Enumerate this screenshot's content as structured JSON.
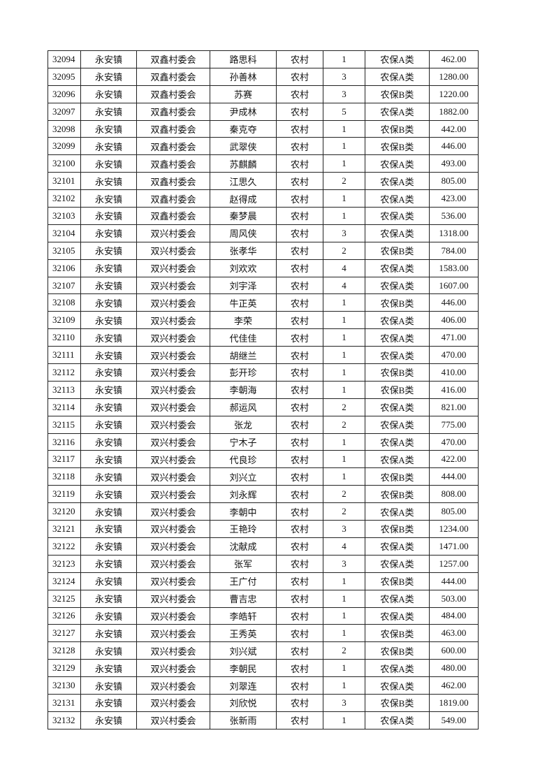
{
  "table": {
    "rows": [
      [
        "32094",
        "永安镇",
        "双鑫村委会",
        "路思科",
        "农村",
        "1",
        "农保A类",
        "462.00"
      ],
      [
        "32095",
        "永安镇",
        "双鑫村委会",
        "孙善林",
        "农村",
        "3",
        "农保A类",
        "1280.00"
      ],
      [
        "32096",
        "永安镇",
        "双鑫村委会",
        "苏赛",
        "农村",
        "3",
        "农保B类",
        "1220.00"
      ],
      [
        "32097",
        "永安镇",
        "双鑫村委会",
        "尹成林",
        "农村",
        "5",
        "农保A类",
        "1882.00"
      ],
      [
        "32098",
        "永安镇",
        "双鑫村委会",
        "秦克夺",
        "农村",
        "1",
        "农保B类",
        "442.00"
      ],
      [
        "32099",
        "永安镇",
        "双鑫村委会",
        "武翠侠",
        "农村",
        "1",
        "农保B类",
        "446.00"
      ],
      [
        "32100",
        "永安镇",
        "双鑫村委会",
        "苏麒麟",
        "农村",
        "1",
        "农保A类",
        "493.00"
      ],
      [
        "32101",
        "永安镇",
        "双鑫村委会",
        "江思久",
        "农村",
        "2",
        "农保A类",
        "805.00"
      ],
      [
        "32102",
        "永安镇",
        "双鑫村委会",
        "赵得成",
        "农村",
        "1",
        "农保A类",
        "423.00"
      ],
      [
        "32103",
        "永安镇",
        "双鑫村委会",
        "秦梦晨",
        "农村",
        "1",
        "农保A类",
        "536.00"
      ],
      [
        "32104",
        "永安镇",
        "双兴村委会",
        "周风侠",
        "农村",
        "3",
        "农保A类",
        "1318.00"
      ],
      [
        "32105",
        "永安镇",
        "双兴村委会",
        "张孝华",
        "农村",
        "2",
        "农保B类",
        "784.00"
      ],
      [
        "32106",
        "永安镇",
        "双兴村委会",
        "刘欢欢",
        "农村",
        "4",
        "农保A类",
        "1583.00"
      ],
      [
        "32107",
        "永安镇",
        "双兴村委会",
        "刘宇泽",
        "农村",
        "4",
        "农保A类",
        "1607.00"
      ],
      [
        "32108",
        "永安镇",
        "双兴村委会",
        "牛正英",
        "农村",
        "1",
        "农保B类",
        "446.00"
      ],
      [
        "32109",
        "永安镇",
        "双兴村委会",
        "李荣",
        "农村",
        "1",
        "农保A类",
        "406.00"
      ],
      [
        "32110",
        "永安镇",
        "双兴村委会",
        "代佳佳",
        "农村",
        "1",
        "农保A类",
        "471.00"
      ],
      [
        "32111",
        "永安镇",
        "双兴村委会",
        "胡继兰",
        "农村",
        "1",
        "农保A类",
        "470.00"
      ],
      [
        "32112",
        "永安镇",
        "双兴村委会",
        "彭开珍",
        "农村",
        "1",
        "农保B类",
        "410.00"
      ],
      [
        "32113",
        "永安镇",
        "双兴村委会",
        "李朝海",
        "农村",
        "1",
        "农保B类",
        "416.00"
      ],
      [
        "32114",
        "永安镇",
        "双兴村委会",
        "郝运风",
        "农村",
        "2",
        "农保A类",
        "821.00"
      ],
      [
        "32115",
        "永安镇",
        "双兴村委会",
        "张龙",
        "农村",
        "2",
        "农保A类",
        "775.00"
      ],
      [
        "32116",
        "永安镇",
        "双兴村委会",
        "宁木子",
        "农村",
        "1",
        "农保A类",
        "470.00"
      ],
      [
        "32117",
        "永安镇",
        "双兴村委会",
        "代良珍",
        "农村",
        "1",
        "农保A类",
        "422.00"
      ],
      [
        "32118",
        "永安镇",
        "双兴村委会",
        "刘兴立",
        "农村",
        "1",
        "农保B类",
        "444.00"
      ],
      [
        "32119",
        "永安镇",
        "双兴村委会",
        "刘永辉",
        "农村",
        "2",
        "农保B类",
        "808.00"
      ],
      [
        "32120",
        "永安镇",
        "双兴村委会",
        "李朝中",
        "农村",
        "2",
        "农保A类",
        "805.00"
      ],
      [
        "32121",
        "永安镇",
        "双兴村委会",
        "王艳玲",
        "农村",
        "3",
        "农保B类",
        "1234.00"
      ],
      [
        "32122",
        "永安镇",
        "双兴村委会",
        "沈献成",
        "农村",
        "4",
        "农保A类",
        "1471.00"
      ],
      [
        "32123",
        "永安镇",
        "双兴村委会",
        "张军",
        "农村",
        "3",
        "农保A类",
        "1257.00"
      ],
      [
        "32124",
        "永安镇",
        "双兴村委会",
        "王广付",
        "农村",
        "1",
        "农保B类",
        "444.00"
      ],
      [
        "32125",
        "永安镇",
        "双兴村委会",
        "曹吉忠",
        "农村",
        "1",
        "农保A类",
        "503.00"
      ],
      [
        "32126",
        "永安镇",
        "双兴村委会",
        "李皓轩",
        "农村",
        "1",
        "农保A类",
        "484.00"
      ],
      [
        "32127",
        "永安镇",
        "双兴村委会",
        "王秀英",
        "农村",
        "1",
        "农保B类",
        "463.00"
      ],
      [
        "32128",
        "永安镇",
        "双兴村委会",
        "刘兴斌",
        "农村",
        "2",
        "农保B类",
        "600.00"
      ],
      [
        "32129",
        "永安镇",
        "双兴村委会",
        "李朝民",
        "农村",
        "1",
        "农保A类",
        "480.00"
      ],
      [
        "32130",
        "永安镇",
        "双兴村委会",
        "刘翠连",
        "农村",
        "1",
        "农保A类",
        "462.00"
      ],
      [
        "32131",
        "永安镇",
        "双兴村委会",
        "刘欣悦",
        "农村",
        "3",
        "农保B类",
        "1819.00"
      ],
      [
        "32132",
        "永安镇",
        "双兴村委会",
        "张新雨",
        "农村",
        "1",
        "农保A类",
        "549.00"
      ]
    ]
  }
}
